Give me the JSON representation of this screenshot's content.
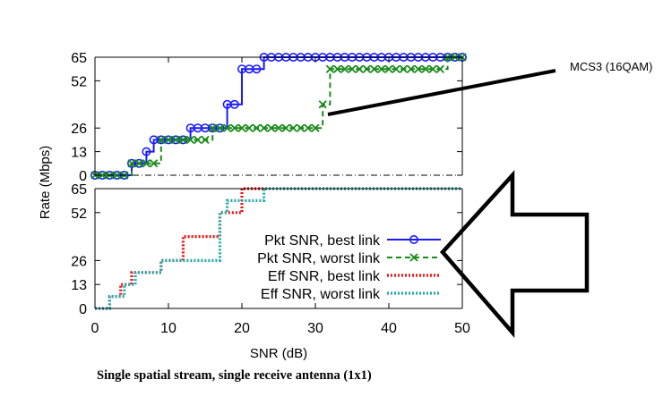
{
  "chart_data": {
    "type": "line",
    "caption": "Single spatial stream, single receive antenna (1x1)",
    "xlabel": "SNR (dB)",
    "ylabel": "Rate (Mbps)",
    "xlim": [
      0,
      50
    ],
    "ylim": [
      0,
      65
    ],
    "x_ticks": [
      "0",
      "10",
      "20",
      "30",
      "40",
      "50"
    ],
    "y_ticks": [
      "0",
      "13",
      "26",
      "52",
      "65"
    ],
    "annotation": {
      "text": "MCS3 (16QAM)"
    },
    "panels": [
      {
        "name": "top",
        "series": [
          {
            "name": "Pkt SNR, best link",
            "color": "#1a1aff",
            "marker": "circle",
            "points": [
              [
                0,
                0
              ],
              [
                1,
                0
              ],
              [
                2,
                0
              ],
              [
                3,
                0
              ],
              [
                4,
                0
              ],
              [
                5,
                6.5
              ],
              [
                6,
                6.5
              ],
              [
                7,
                13
              ],
              [
                8,
                19.5
              ],
              [
                9,
                19.5
              ],
              [
                10,
                19.5
              ],
              [
                11,
                19.5
              ],
              [
                12,
                19.5
              ],
              [
                13,
                26
              ],
              [
                14,
                26
              ],
              [
                15,
                26
              ],
              [
                16,
                26
              ],
              [
                17,
                26
              ],
              [
                18,
                39
              ],
              [
                19,
                39
              ],
              [
                20,
                58.5
              ],
              [
                21,
                58.5
              ],
              [
                22,
                58.5
              ],
              [
                23,
                65
              ],
              [
                24,
                65
              ],
              [
                25,
                65
              ],
              [
                26,
                65
              ],
              [
                27,
                65
              ],
              [
                28,
                65
              ],
              [
                29,
                65
              ],
              [
                30,
                65
              ],
              [
                31,
                65
              ],
              [
                32,
                65
              ],
              [
                33,
                65
              ],
              [
                34,
                65
              ],
              [
                35,
                65
              ],
              [
                36,
                65
              ],
              [
                37,
                65
              ],
              [
                38,
                65
              ],
              [
                39,
                65
              ],
              [
                40,
                65
              ],
              [
                41,
                65
              ],
              [
                42,
                65
              ],
              [
                43,
                65
              ],
              [
                44,
                65
              ],
              [
                45,
                65
              ],
              [
                46,
                65
              ],
              [
                47,
                65
              ],
              [
                48,
                65
              ],
              [
                49,
                65
              ],
              [
                50,
                65
              ]
            ]
          },
          {
            "name": "Pkt SNR, worst link",
            "color": "#1a8a1a",
            "marker": "x",
            "points": [
              [
                0,
                0
              ],
              [
                1,
                0
              ],
              [
                2,
                0
              ],
              [
                3,
                0
              ],
              [
                4,
                0
              ],
              [
                5,
                6.5
              ],
              [
                6,
                6.5
              ],
              [
                7,
                6.5
              ],
              [
                8,
                6.5
              ],
              [
                9,
                19.5
              ],
              [
                10,
                19.5
              ],
              [
                11,
                19.5
              ],
              [
                12,
                19.5
              ],
              [
                13,
                19.5
              ],
              [
                14,
                19.5
              ],
              [
                15,
                19.5
              ],
              [
                16,
                26
              ],
              [
                17,
                26
              ],
              [
                18,
                26
              ],
              [
                19,
                26
              ],
              [
                20,
                26
              ],
              [
                21,
                26
              ],
              [
                22,
                26
              ],
              [
                23,
                26
              ],
              [
                24,
                26
              ],
              [
                25,
                26
              ],
              [
                26,
                26
              ],
              [
                27,
                26
              ],
              [
                28,
                26
              ],
              [
                29,
                26
              ],
              [
                30,
                26
              ],
              [
                31,
                39
              ],
              [
                32,
                58.5
              ],
              [
                33,
                58.5
              ],
              [
                34,
                58.5
              ],
              [
                35,
                58.5
              ],
              [
                36,
                58.5
              ],
              [
                37,
                58.5
              ],
              [
                38,
                58.5
              ],
              [
                39,
                58.5
              ],
              [
                40,
                58.5
              ],
              [
                41,
                58.5
              ],
              [
                42,
                58.5
              ],
              [
                43,
                58.5
              ],
              [
                44,
                58.5
              ],
              [
                45,
                58.5
              ],
              [
                46,
                58.5
              ],
              [
                47,
                58.5
              ],
              [
                48,
                65
              ],
              [
                49,
                65
              ],
              [
                50,
                65
              ]
            ]
          }
        ]
      },
      {
        "name": "bottom",
        "series": [
          {
            "name": "Eff SNR, best link",
            "color": "#ee1111",
            "style": "dotted",
            "points": [
              [
                0,
                0
              ],
              [
                1,
                0
              ],
              [
                2,
                6.5
              ],
              [
                3,
                6.5
              ],
              [
                3.5,
                13
              ],
              [
                4.5,
                13
              ],
              [
                5,
                19.5
              ],
              [
                7,
                19.5
              ],
              [
                8,
                19.5
              ],
              [
                9,
                26
              ],
              [
                11,
                26
              ],
              [
                12,
                39
              ],
              [
                16,
                39
              ],
              [
                17,
                52
              ],
              [
                19,
                52
              ],
              [
                20,
                65
              ],
              [
                50,
                65
              ]
            ]
          },
          {
            "name": "Eff SNR, worst link",
            "color": "#22a8a8",
            "style": "dotted",
            "points": [
              [
                0,
                0
              ],
              [
                1,
                0
              ],
              [
                2,
                6.5
              ],
              [
                3,
                6.5
              ],
              [
                4,
                13
              ],
              [
                4.5,
                13
              ],
              [
                5.5,
                19.5
              ],
              [
                8,
                19.5
              ],
              [
                9,
                26
              ],
              [
                14,
                26
              ],
              [
                16,
                26
              ],
              [
                17,
                52
              ],
              [
                18,
                58.5
              ],
              [
                22,
                58.5
              ],
              [
                23,
                65
              ],
              [
                50,
                65
              ]
            ]
          }
        ]
      }
    ]
  }
}
